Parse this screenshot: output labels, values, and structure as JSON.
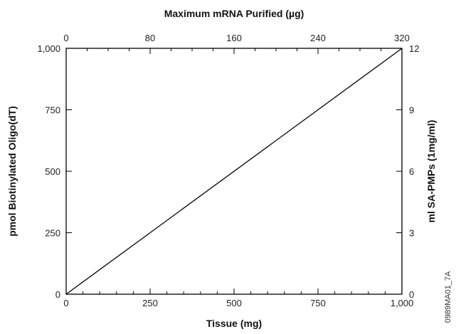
{
  "chart_data": {
    "type": "line",
    "title": "",
    "figure_id": "0989MA01_7A",
    "axes": {
      "bottom": {
        "label": "Tissue (mg)",
        "range": [
          0,
          1000
        ],
        "ticks": [
          0,
          250,
          500,
          750,
          1000
        ],
        "tick_labels": [
          "0",
          "250",
          "500",
          "750",
          "1,000"
        ]
      },
      "top": {
        "label": "Maximum mRNA Purified (µg)",
        "range": [
          0,
          320
        ],
        "ticks": [
          0,
          80,
          160,
          240,
          320
        ],
        "tick_labels": [
          "0",
          "80",
          "160",
          "240",
          "320"
        ]
      },
      "left": {
        "label": "pmol Biotinylated Oligo(dT)",
        "range": [
          0,
          1000
        ],
        "ticks": [
          0,
          250,
          500,
          750,
          1000
        ],
        "tick_labels": [
          "0",
          "250",
          "500",
          "750",
          "1,000"
        ]
      },
      "right": {
        "label": "ml SA-PMPs (1mg/ml)",
        "range": [
          0,
          12
        ],
        "ticks": [
          0,
          3,
          6,
          9,
          12
        ],
        "tick_labels": [
          "0",
          "3",
          "6",
          "9",
          "12"
        ]
      }
    },
    "series": [
      {
        "x": [
          0,
          1000
        ],
        "y": [
          0,
          1000
        ],
        "color": "#000000"
      }
    ],
    "grid": false,
    "legend": "none"
  }
}
